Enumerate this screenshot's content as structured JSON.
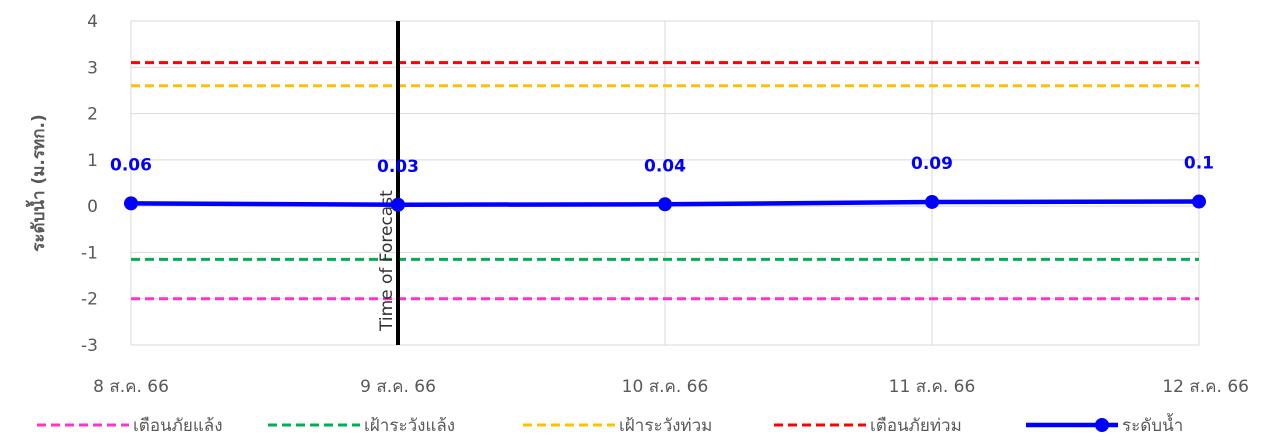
{
  "chart_data": {
    "type": "line",
    "ylabel": "ระดับน้ำ (ม.รทก.)",
    "ylim": [
      -3,
      4
    ],
    "yticks": [
      "4",
      "3",
      "2",
      "1",
      "0",
      "-1",
      "-2",
      "-3"
    ],
    "categories": [
      "8 ส.ค. 66",
      "9 ส.ค. 66",
      "10 ส.ค. 66",
      "11 ส.ค. 66",
      "12 ส.ค. 66"
    ],
    "grid": true,
    "legend_position": "bottom",
    "thresholds": [
      {
        "name": "เตือนภัยแล้ง",
        "value": -2.0,
        "color": "#ff33cc"
      },
      {
        "name": "เฝ้าระวังแล้ง",
        "value": -1.15,
        "color": "#00b050"
      },
      {
        "name": "เฝ้าระวังท่วม",
        "value": 2.6,
        "color": "#ffc000"
      },
      {
        "name": "เตือนภัยท่วม",
        "value": 3.1,
        "color": "#ff0000"
      }
    ],
    "series": [
      {
        "name": "ระดับน้ำ",
        "color": "#0000ff",
        "values": [
          0.06,
          0.03,
          0.04,
          0.09,
          0.1
        ],
        "labels": [
          "0.06",
          "0.03",
          "0.04",
          "0.09",
          "0.1"
        ]
      }
    ],
    "annotation": {
      "text": "Time of Forecast",
      "category": "9 ส.ค. 66",
      "color": "#000000"
    }
  }
}
